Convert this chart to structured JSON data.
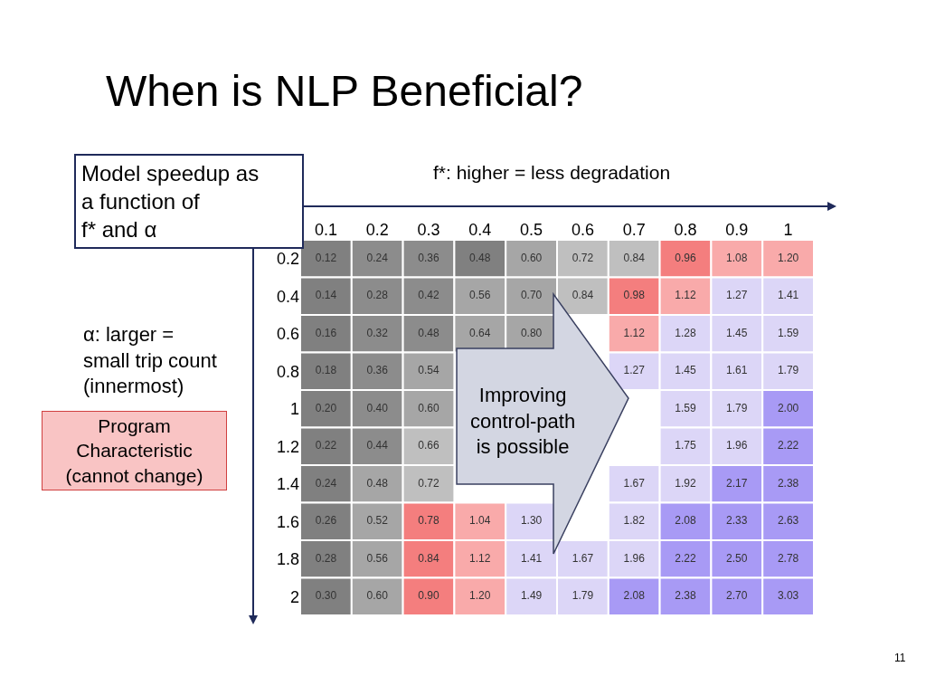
{
  "chart_data": {
    "type": "heatmap",
    "title": "When is NLP Beneficial?",
    "xlabel": "f*: higher = less degradation",
    "ylabel": "α: larger =\nsmall trip count\n(innermost)",
    "annotations": [
      "Model speedup as\na function of\nf* and α",
      "Program\nCharacteristic\n(cannot change)",
      "Improving\ncontrol-path\nis possible",
      "11"
    ],
    "categories": [
      "0.1",
      "0.2",
      "0.3",
      "0.4",
      "0.5",
      "0.6",
      "0.7",
      "0.8",
      "0.9",
      "1"
    ],
    "y_categories": [
      "0.2",
      "0.4",
      "0.6",
      "0.8",
      "1",
      "1.2",
      "1.4",
      "1.6",
      "1.8",
      "2"
    ],
    "cells": [
      [
        0.12,
        0.24,
        0.36,
        0.48,
        0.6,
        0.72,
        0.84,
        0.96,
        1.08,
        1.2
      ],
      [
        0.14,
        0.28,
        0.42,
        0.56,
        0.7,
        0.84,
        0.98,
        1.12,
        1.27,
        1.41
      ],
      [
        0.16,
        0.32,
        0.48,
        0.64,
        0.8,
        null,
        1.12,
        1.28,
        1.45,
        1.59
      ],
      [
        0.18,
        0.36,
        0.54,
        null,
        null,
        null,
        1.27,
        1.45,
        1.61,
        1.79
      ],
      [
        0.2,
        0.4,
        0.6,
        null,
        null,
        null,
        null,
        1.59,
        1.79,
        2.0
      ],
      [
        0.22,
        0.44,
        0.66,
        null,
        null,
        null,
        null,
        1.75,
        1.96,
        2.22
      ],
      [
        0.24,
        0.48,
        0.72,
        null,
        null,
        null,
        1.67,
        1.92,
        2.17,
        2.38
      ],
      [
        0.26,
        0.52,
        0.78,
        1.04,
        1.3,
        null,
        1.82,
        2.08,
        2.33,
        2.63
      ],
      [
        0.28,
        0.56,
        0.84,
        1.12,
        1.41,
        1.67,
        1.96,
        2.22,
        2.5,
        2.78
      ],
      [
        0.3,
        0.6,
        0.9,
        1.2,
        1.49,
        1.79,
        2.08,
        2.38,
        2.7,
        3.03
      ]
    ],
    "data_labels": true,
    "cell_labels": [
      [
        "0.12",
        "0.24",
        "0.36",
        "0.48",
        "0.60",
        "0.72",
        "0.84",
        "0.96",
        "1.08",
        "1.20"
      ],
      [
        "0.14",
        "0.28",
        "0.42",
        "0.56",
        "0.70",
        "0.84",
        "0.98",
        "1.12",
        "1.27",
        "1.41"
      ],
      [
        "0.16",
        "0.32",
        "0.48",
        "0.64",
        "0.80",
        null,
        "1.12",
        "1.28",
        "1.45",
        "1.59"
      ],
      [
        "0.18",
        "0.36",
        "0.54",
        null,
        null,
        null,
        "1.27",
        "1.45",
        "1.61",
        "1.79"
      ],
      [
        "0.20",
        "0.40",
        "0.60",
        null,
        null,
        null,
        null,
        "1.59",
        "1.79",
        "2.00"
      ],
      [
        "0.22",
        "0.44",
        "0.66",
        null,
        null,
        null,
        null,
        "1.75",
        "1.96",
        "2.22"
      ],
      [
        "0.24",
        "0.48",
        "0.72",
        null,
        null,
        null,
        "1.67",
        "1.92",
        "2.17",
        "2.38"
      ],
      [
        "0.26",
        "0.52",
        "0.78",
        "1.04",
        "1.30",
        null,
        "1.82",
        "2.08",
        "2.33",
        "2.63"
      ],
      [
        "0.28",
        "0.56",
        "0.84",
        "1.12",
        "1.41",
        "1.67",
        "1.96",
        "2.22",
        "2.50",
        "2.78"
      ],
      [
        "0.30",
        "0.60",
        "0.90",
        "1.20",
        "1.49",
        "1.79",
        "2.08",
        "2.38",
        "2.70",
        "3.03"
      ]
    ],
    "colors": [
      [
        "#808080",
        "#8c8c8c",
        "#8c8c8c",
        "#808080",
        "#a6a6a6",
        "#bfbfbf",
        "#bfbfbf",
        "#f47e7e",
        "#f9aaaa",
        "#f9aaaa"
      ],
      [
        "#808080",
        "#8c8c8c",
        "#8c8c8c",
        "#a6a6a6",
        "#a6a6a6",
        "#bfbfbf",
        "#f47e7e",
        "#f9aaaa",
        "#dcd6f7",
        "#dcd6f7"
      ],
      [
        "#808080",
        "#8c8c8c",
        "#8c8c8c",
        "#a6a6a6",
        "#a6a6a6",
        null,
        "#f9aaaa",
        "#dcd6f7",
        "#dcd6f7",
        "#dcd6f7"
      ],
      [
        "#808080",
        "#8c8c8c",
        "#a6a6a6",
        null,
        null,
        null,
        "#dcd6f7",
        "#dcd6f7",
        "#dcd6f7",
        "#dcd6f7"
      ],
      [
        "#808080",
        "#8c8c8c",
        "#a6a6a6",
        null,
        null,
        null,
        null,
        "#dcd6f7",
        "#dcd6f7",
        "#a89af5"
      ],
      [
        "#808080",
        "#8c8c8c",
        "#bfbfbf",
        null,
        null,
        null,
        null,
        "#dcd6f7",
        "#dcd6f7",
        "#a89af5"
      ],
      [
        "#808080",
        "#a6a6a6",
        "#bfbfbf",
        null,
        null,
        null,
        "#dcd6f7",
        "#dcd6f7",
        "#a89af5",
        "#a89af5"
      ],
      [
        "#808080",
        "#a6a6a6",
        "#f47e7e",
        "#f9aaaa",
        "#dcd6f7",
        null,
        "#dcd6f7",
        "#a89af5",
        "#a89af5",
        "#a89af5"
      ],
      [
        "#808080",
        "#a6a6a6",
        "#f47e7e",
        "#f9aaaa",
        "#dcd6f7",
        "#dcd6f7",
        "#dcd6f7",
        "#a89af5",
        "#a89af5",
        "#a89af5"
      ],
      [
        "#808080",
        "#a6a6a6",
        "#f47e7e",
        "#f9aaaa",
        "#dcd6f7",
        "#dcd6f7",
        "#a89af5",
        "#a89af5",
        "#a89af5",
        "#a89af5"
      ]
    ]
  }
}
